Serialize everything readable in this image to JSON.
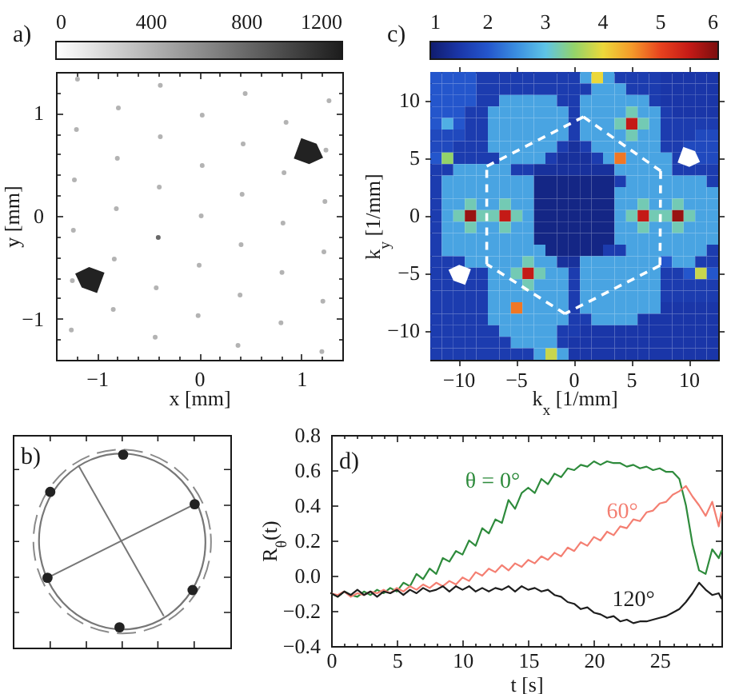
{
  "chart_data": [
    {
      "type": "scatter",
      "annotations": [
        "a)"
      ],
      "xlabel": "x [mm]",
      "ylabel": "y [mm]",
      "marker": "circle",
      "x": [
        -1.19,
        -0.38,
        0.45,
        1.27,
        -0.79,
        0.03,
        0.85,
        -1.2,
        -0.38,
        0.43,
        1.24,
        -0.8,
        0.03,
        0.83,
        -1.22,
        -0.39,
        0.42,
        1.23,
        -0.81,
        0.02,
        0.82,
        -1.23,
        -0.4,
        0.41,
        1.22,
        -0.83,
        0.0,
        0.81,
        -1.24,
        -0.42,
        0.4,
        1.21,
        -0.84,
        -0.01,
        0.8,
        -1.25,
        -0.43,
        0.38,
        1.2
      ],
      "values": [
        1.33,
        1.27,
        1.19,
        1.12,
        1.05,
        0.98,
        0.91,
        0.84,
        0.77,
        0.7,
        0.64,
        0.56,
        0.49,
        0.42,
        0.35,
        0.28,
        0.21,
        0.14,
        0.07,
        0.0,
        -0.07,
        -0.14,
        -0.21,
        -0.28,
        -0.35,
        -0.42,
        -0.48,
        -0.55,
        -0.63,
        -0.7,
        -0.77,
        -0.83,
        -0.91,
        -0.97,
        -1.04,
        -1.11,
        -1.18,
        -1.26,
        -1.32
      ],
      "cvalues": [
        400,
        400,
        400,
        400,
        400,
        400,
        400,
        400,
        400,
        400,
        400,
        400,
        400,
        400,
        400,
        400,
        400,
        400,
        400,
        400,
        400,
        400,
        800,
        400,
        400,
        400,
        400,
        400,
        400,
        400,
        400,
        400,
        400,
        400,
        400,
        400,
        400,
        400,
        400
      ],
      "clim": [
        0,
        1200
      ],
      "cticks": [
        0,
        400,
        800,
        1200
      ],
      "xlim": [
        -1.4,
        1.4
      ],
      "ylim": [
        -1.4,
        1.4
      ],
      "xticks": [
        {
          "value": -1.2,
          "label": null
        },
        {
          "value": -1,
          "label": "−1"
        },
        {
          "value": -0.8,
          "label": null
        },
        {
          "value": -0.6,
          "label": null
        },
        {
          "value": -0.4,
          "label": null
        },
        {
          "value": -0.2,
          "label": null
        },
        0,
        {
          "value": 0.2,
          "label": null
        },
        {
          "value": 0.4,
          "label": null
        },
        {
          "value": 0.6,
          "label": null
        },
        {
          "value": 0.8,
          "label": null
        },
        1,
        {
          "value": 1.2,
          "label": null
        }
      ],
      "yticks": [
        {
          "value": -1.2,
          "label": null
        },
        {
          "value": -1,
          "label": "−1"
        },
        {
          "value": -0.8,
          "label": null
        },
        {
          "value": -0.6,
          "label": null
        },
        {
          "value": -0.4,
          "label": null
        },
        {
          "value": -0.2,
          "label": null
        },
        0,
        {
          "value": 0.2,
          "label": null
        },
        {
          "value": 0.4,
          "label": null
        },
        {
          "value": 0.6,
          "label": null
        },
        {
          "value": 0.8,
          "label": null
        },
        1,
        {
          "value": 1.2,
          "label": null
        }
      ]
    },
    {
      "type": "other",
      "annotations": [
        "b)"
      ]
    },
    {
      "type": "heatmap",
      "annotations": [
        "c)"
      ],
      "xlabel": "k$_{x}$ [1/mm]",
      "ylabel": "k$_{y}$ [1/mm]",
      "categories": [
        null,
        null,
        "−10",
        null,
        null,
        null,
        null,
        "−5",
        null,
        null,
        null,
        null,
        "0",
        null,
        null,
        null,
        null,
        "5",
        null,
        null,
        null,
        null,
        "10",
        null,
        null
      ],
      "y_categories": [
        null,
        null,
        "10",
        null,
        null,
        null,
        null,
        "5",
        null,
        null,
        null,
        null,
        "0",
        null,
        null,
        null,
        null,
        "−5",
        null,
        null,
        null,
        null,
        "−10",
        null,
        null
      ],
      "cells": [
        [
          2,
          2,
          2,
          2,
          1.6,
          1.6,
          1.6,
          1.6,
          1.6,
          1.6,
          1.6,
          1.6,
          1.6,
          2.7,
          4.0,
          2.7,
          1.6,
          1.6,
          1.6,
          1.6,
          1.5,
          1.5,
          1.5,
          1.5,
          1.5
        ],
        [
          2,
          2,
          2,
          2,
          1.6,
          1.6,
          1.6,
          1.6,
          1.6,
          1.6,
          1.6,
          1.6,
          1.6,
          1.6,
          2.7,
          2.7,
          2.7,
          1.6,
          1.6,
          1.6,
          1.5,
          1.5,
          1.5,
          1.5,
          1.5
        ],
        [
          2,
          2,
          2,
          2,
          1.6,
          1.6,
          2.7,
          2.7,
          2.7,
          2.7,
          2.7,
          1.6,
          1.6,
          2.7,
          2.7,
          2.7,
          2.7,
          2.7,
          2.7,
          1.6,
          1.5,
          1.5,
          1.5,
          1.5,
          1.5
        ],
        [
          2,
          2,
          2,
          1.6,
          1.6,
          2.7,
          2.7,
          2.7,
          2.7,
          2.7,
          2.7,
          2.7,
          1.6,
          2.7,
          2.7,
          2.7,
          2.7,
          3.2,
          2.7,
          2.7,
          1.6,
          1.5,
          1.5,
          1.5,
          1.5
        ],
        [
          2,
          2.8,
          2,
          1.6,
          1.6,
          2.7,
          2.7,
          2.7,
          2.7,
          2.7,
          2.7,
          2.7,
          1.6,
          2.7,
          2.7,
          2.7,
          3.2,
          5.5,
          3.2,
          2.7,
          1.6,
          1.6,
          1.6,
          1.6,
          1.6
        ],
        [
          1.8,
          1.8,
          1.8,
          1.6,
          1.6,
          2.7,
          2.7,
          2.7,
          2.7,
          2.7,
          2.7,
          2.7,
          1.6,
          2.7,
          2.7,
          2.7,
          2.7,
          3.2,
          2.7,
          2.7,
          1.6,
          1.6,
          1.6,
          1.8,
          1.8
        ],
        [
          1.8,
          1.8,
          1.6,
          1.6,
          1.6,
          2.7,
          2.7,
          2.7,
          2.7,
          2.7,
          2.7,
          1.6,
          1.4,
          1.6,
          2.7,
          2.7,
          2.7,
          2.7,
          2.7,
          2.7,
          1.6,
          1.6,
          1.8,
          1.8,
          1.8
        ],
        [
          2,
          3.5,
          1.6,
          1.6,
          1.6,
          1.6,
          2.7,
          2.7,
          2.7,
          2.7,
          1.6,
          1.4,
          1.4,
          1.4,
          1.6,
          2.7,
          4.7,
          2.7,
          2.7,
          2.7,
          2.7,
          1.6,
          null,
          1.8,
          1.8
        ],
        [
          1.6,
          1.6,
          2.7,
          2.7,
          2.7,
          2.7,
          2.7,
          1.6,
          1.6,
          1.4,
          1.4,
          1.4,
          1.4,
          1.4,
          1.4,
          1.4,
          2.7,
          2.7,
          2.7,
          2.7,
          2.7,
          1.6,
          1.6,
          1.6,
          1.6
        ],
        [
          1.6,
          2.7,
          2.7,
          2.7,
          2.7,
          2.7,
          2.7,
          2.7,
          2.7,
          1.2,
          1.2,
          1.2,
          1.2,
          1.2,
          1.2,
          1.2,
          1.6,
          2.7,
          2.7,
          2.7,
          2.7,
          2.7,
          2.7,
          2.7,
          1.6
        ],
        [
          1.6,
          2.7,
          2.7,
          2.7,
          2.7,
          2.7,
          2.7,
          2.7,
          2.7,
          1.2,
          1.2,
          1.2,
          1.2,
          1.2,
          1.2,
          1.2,
          2.7,
          2.7,
          2.7,
          2.7,
          2.7,
          2.7,
          2.7,
          2.7,
          2.7
        ],
        [
          1.6,
          2.7,
          2.7,
          3.2,
          2.7,
          2.7,
          3.2,
          2.7,
          2.7,
          1.2,
          1.2,
          1.2,
          1.2,
          1.2,
          1.2,
          1.2,
          2.7,
          2.7,
          3.2,
          2.7,
          2.7,
          3.2,
          2.7,
          2.7,
          2.7
        ],
        [
          1.6,
          2.7,
          3.2,
          5.8,
          3.2,
          3.2,
          5.5,
          3.2,
          2.7,
          1.2,
          1.2,
          1.2,
          1.2,
          1.2,
          1.2,
          1.2,
          2.7,
          3.2,
          5.5,
          3.2,
          3.2,
          5.8,
          3.2,
          2.7,
          2.7
        ],
        [
          1.6,
          2.7,
          2.7,
          3.2,
          2.7,
          2.7,
          3.2,
          2.7,
          2.7,
          1.2,
          1.2,
          1.2,
          1.2,
          1.2,
          1.2,
          1.2,
          2.7,
          2.7,
          3.2,
          2.7,
          2.7,
          3.2,
          2.7,
          2.7,
          2.7
        ],
        [
          1.6,
          2.7,
          2.7,
          2.7,
          2.7,
          2.7,
          2.7,
          2.7,
          2.7,
          1.2,
          1.2,
          1.2,
          1.2,
          1.2,
          1.2,
          1.2,
          2.7,
          2.7,
          2.7,
          2.7,
          2.7,
          2.7,
          2.7,
          2.7,
          2.7
        ],
        [
          1.6,
          2.7,
          2.7,
          2.7,
          2.7,
          2.7,
          2.7,
          2.7,
          2.7,
          2.7,
          1.2,
          1.2,
          1.2,
          1.2,
          1.2,
          1.6,
          1.6,
          2.7,
          2.7,
          2.7,
          2.7,
          2.7,
          2.7,
          2.7,
          1.6
        ],
        [
          1.6,
          1.6,
          1.6,
          2.7,
          2.7,
          2.7,
          2.7,
          2.7,
          3.2,
          2.7,
          2.7,
          1.4,
          1.4,
          2.7,
          2.7,
          2.7,
          2.7,
          2.7,
          2.7,
          2.7,
          2,
          2.7,
          2.7,
          1.6,
          1.6
        ],
        [
          1.6,
          1.6,
          null,
          1.6,
          1.6,
          2.7,
          2.7,
          3.2,
          5.5,
          3.2,
          2.7,
          2.7,
          1.6,
          2.7,
          2.7,
          2.7,
          2.7,
          2.7,
          2.7,
          2.7,
          1.6,
          1.6,
          2,
          3.8,
          2
        ],
        [
          1.6,
          1.6,
          1.6,
          1.6,
          1.6,
          2.7,
          2.7,
          2.7,
          3.2,
          2.7,
          2.7,
          2.7,
          1.6,
          2.7,
          2.7,
          2.7,
          2.7,
          2.7,
          2.7,
          2.7,
          1.6,
          1.6,
          1.6,
          1.6,
          1.6
        ],
        [
          1.6,
          1.6,
          1.6,
          1.6,
          1.6,
          2.7,
          2.7,
          2.7,
          2.7,
          2.7,
          2.7,
          2.7,
          1.6,
          2.7,
          2.7,
          2.7,
          2.7,
          2.7,
          2.7,
          2.7,
          1.6,
          1.6,
          1.6,
          1.6,
          1.6
        ],
        [
          1.6,
          1.6,
          1.6,
          1.6,
          1.6,
          2.7,
          2.7,
          4.7,
          2.7,
          2.7,
          2.7,
          2.7,
          1.6,
          2.7,
          2.7,
          2.7,
          2.7,
          2.7,
          2.7,
          2.7,
          1.5,
          1.5,
          1.5,
          1.5,
          1.5
        ],
        [
          1.6,
          1.6,
          1.6,
          1.6,
          1.6,
          2.7,
          2.7,
          2.7,
          2.7,
          2.7,
          2.7,
          2.7,
          1.6,
          1.6,
          2.7,
          2.7,
          2.7,
          2.7,
          1.5,
          1.5,
          1.5,
          1.5,
          1.5,
          1.5,
          1.5
        ],
        [
          1.6,
          1.6,
          1.6,
          1.6,
          1.6,
          1.6,
          2.7,
          2.7,
          2.7,
          2.7,
          2.7,
          1.6,
          1.6,
          1.5,
          1.5,
          1.5,
          1.5,
          1.5,
          1.5,
          1.5,
          1.5,
          1.5,
          1.5,
          1.5,
          1.5
        ],
        [
          1.6,
          1.6,
          1.6,
          1.6,
          1.6,
          1.6,
          1.6,
          2.7,
          2.7,
          2.7,
          2.7,
          1.6,
          1.5,
          1.5,
          1.5,
          1.5,
          1.5,
          1.5,
          1.5,
          1.5,
          1.5,
          1.5,
          1.5,
          1.5,
          1.5
        ],
        [
          1.6,
          1.6,
          1.6,
          1.6,
          1.6,
          1.6,
          1.6,
          1.6,
          1.6,
          2.7,
          3.8,
          2.7,
          1.5,
          1.5,
          1.5,
          1.5,
          1.5,
          1.5,
          1.5,
          1.5,
          1.5,
          1.5,
          1.5,
          1.5,
          1.5
        ]
      ],
      "clim": [
        1,
        6
      ],
      "cticks": [
        1,
        2,
        3,
        4,
        5,
        6
      ]
    },
    {
      "type": "line",
      "annotations": [
        "d)"
      ],
      "xlabel": "t [s]",
      "ylabel": "R$_{θ}$(t)",
      "x": [
        0,
        0.5,
        1,
        1.5,
        2,
        2.5,
        3,
        3.5,
        4,
        4.5,
        5,
        5.5,
        6,
        6.5,
        7,
        7.5,
        8,
        8.5,
        9,
        9.5,
        10,
        10.5,
        11,
        11.5,
        12,
        12.5,
        13,
        13.5,
        14,
        14.5,
        15,
        15.5,
        16,
        16.5,
        17,
        17.5,
        18,
        18.5,
        19,
        19.5,
        20,
        20.5,
        21,
        21.5,
        22,
        22.5,
        23,
        23.5,
        24,
        24.5,
        25,
        25.5,
        26,
        26.5,
        27,
        27.5,
        28,
        28.5,
        29,
        29.5,
        29.7
      ],
      "series": [
        {
          "name": "θ = 0°",
          "color": "#2e8b3c",
          "values": [
            -0.1,
            -0.12,
            -0.09,
            -0.11,
            -0.12,
            -0.09,
            -0.11,
            -0.08,
            -0.1,
            -0.07,
            -0.09,
            -0.04,
            -0.06,
            0.01,
            -0.02,
            0.04,
            0.01,
            0.1,
            0.08,
            0.14,
            0.12,
            0.2,
            0.17,
            0.27,
            0.24,
            0.32,
            0.3,
            0.43,
            0.38,
            0.47,
            0.5,
            0.47,
            0.55,
            0.52,
            0.58,
            0.56,
            0.61,
            0.6,
            0.63,
            0.62,
            0.65,
            0.63,
            0.65,
            0.64,
            0.64,
            0.62,
            0.63,
            0.61,
            0.62,
            0.6,
            0.61,
            0.59,
            0.59,
            0.55,
            0.4,
            0.18,
            0.03,
            0.01,
            0.15,
            0.1,
            0.14
          ]
        },
        {
          "name": "60°",
          "color": "#f47f72",
          "values": [
            -0.1,
            -0.11,
            -0.09,
            -0.12,
            -0.1,
            -0.11,
            -0.09,
            -0.1,
            -0.08,
            -0.1,
            -0.07,
            -0.09,
            -0.06,
            -0.08,
            -0.05,
            -0.07,
            -0.04,
            -0.06,
            -0.03,
            -0.05,
            -0.01,
            -0.03,
            0.02,
            0.0,
            0.04,
            0.02,
            0.06,
            0.03,
            0.07,
            0.05,
            0.09,
            0.07,
            0.11,
            0.09,
            0.13,
            0.11,
            0.16,
            0.14,
            0.19,
            0.17,
            0.22,
            0.2,
            0.25,
            0.23,
            0.28,
            0.27,
            0.32,
            0.31,
            0.36,
            0.37,
            0.41,
            0.42,
            0.46,
            0.48,
            0.51,
            0.45,
            0.4,
            0.34,
            0.42,
            0.28,
            0.36
          ]
        },
        {
          "name": "120°",
          "color": "#1e1e1e",
          "values": [
            -0.1,
            -0.12,
            -0.09,
            -0.11,
            -0.08,
            -0.11,
            -0.09,
            -0.12,
            -0.09,
            -0.1,
            -0.08,
            -0.11,
            -0.08,
            -0.1,
            -0.07,
            -0.09,
            -0.08,
            -0.06,
            -0.09,
            -0.06,
            -0.08,
            -0.06,
            -0.09,
            -0.07,
            -0.09,
            -0.07,
            -0.08,
            -0.06,
            -0.09,
            -0.06,
            -0.08,
            -0.07,
            -0.09,
            -0.08,
            -0.11,
            -0.12,
            -0.15,
            -0.16,
            -0.19,
            -0.18,
            -0.21,
            -0.22,
            -0.24,
            -0.23,
            -0.26,
            -0.25,
            -0.27,
            -0.26,
            -0.26,
            -0.25,
            -0.24,
            -0.23,
            -0.21,
            -0.19,
            -0.15,
            -0.1,
            -0.04,
            -0.08,
            -0.11,
            -0.1,
            -0.13
          ]
        }
      ],
      "xlim": [
        0,
        29.7
      ],
      "ylim": [
        -0.4,
        0.8
      ],
      "xticks": [
        0,
        {
          "value": 1,
          "label": null
        },
        {
          "value": 2,
          "label": null
        },
        {
          "value": 3,
          "label": null
        },
        {
          "value": 4,
          "label": null
        },
        5,
        {
          "value": 6,
          "label": null
        },
        {
          "value": 7,
          "label": null
        },
        {
          "value": 8,
          "label": null
        },
        {
          "value": 9,
          "label": null
        },
        10,
        {
          "value": 11,
          "label": null
        },
        {
          "value": 12,
          "label": null
        },
        {
          "value": 13,
          "label": null
        },
        {
          "value": 14,
          "label": null
        },
        15,
        {
          "value": 16,
          "label": null
        },
        {
          "value": 17,
          "label": null
        },
        {
          "value": 18,
          "label": null
        },
        {
          "value": 19,
          "label": null
        },
        20,
        {
          "value": 21,
          "label": null
        },
        {
          "value": 22,
          "label": null
        },
        {
          "value": 23,
          "label": null
        },
        {
          "value": 24,
          "label": null
        },
        25,
        {
          "value": 26,
          "label": null
        },
        {
          "value": 27,
          "label": null
        },
        {
          "value": 28,
          "label": null
        },
        {
          "value": 29,
          "label": null
        }
      ],
      "yticks": [
        {
          "value": -0.4,
          "label": "−0.4"
        },
        {
          "value": -0.2,
          "label": "−0.2"
        },
        {
          "value": 0,
          "label": "0.0"
        },
        0.2,
        0.4,
        0.6,
        0.8
      ]
    }
  ]
}
